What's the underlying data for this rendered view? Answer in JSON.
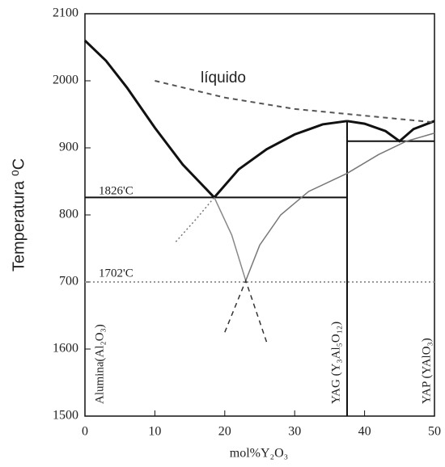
{
  "chart_data": {
    "type": "line",
    "x_label": "mol%Y₂O₃",
    "y_label": "Temperatura ⁰C",
    "annotations": [
      "líquido",
      "1826'C",
      "1702'C",
      "Alumina(Al₂O₃)",
      "YAG (Y₃Al₅O₁₂)",
      "YAP (YAlO₃)"
    ],
    "xlim": [
      0,
      50
    ],
    "xticks": [
      0,
      10,
      20,
      30,
      40,
      50
    ],
    "ylim": [
      1500,
      2100
    ],
    "yticks": [
      1500,
      1600,
      {
        "value": 1700,
        "label": "700"
      },
      {
        "value": 1800,
        "label": "800"
      },
      {
        "value": 1900,
        "label": "900"
      },
      2000,
      2100
    ],
    "series": [
      {
        "color": "#111111",
        "style": "solid",
        "width": 3,
        "x": [
          0,
          3,
          6,
          10,
          14,
          18.5
        ],
        "values": [
          2060,
          2030,
          1990,
          1930,
          1875,
          1826
        ]
      },
      {
        "color": "#111111",
        "style": "solid",
        "width": 3,
        "x": [
          18.5,
          22,
          26,
          30,
          34,
          37.5
        ],
        "values": [
          1826,
          1868,
          1898,
          1920,
          1935,
          1940
        ]
      },
      {
        "color": "#111111",
        "style": "solid",
        "width": 3,
        "x": [
          37.5,
          40,
          43,
          45,
          47,
          50
        ],
        "values": [
          1940,
          1936,
          1925,
          1910,
          1928,
          1940
        ]
      },
      {
        "color": "#555555",
        "style": "dashed",
        "width": 2,
        "x": [
          10,
          20,
          30,
          40,
          50
        ],
        "values": [
          2000,
          1975,
          1958,
          1948,
          1938
        ]
      },
      {
        "color": "#111111",
        "style": "solid",
        "width": 2,
        "x": [
          0,
          37.5
        ],
        "values": [
          1826,
          1826
        ]
      },
      {
        "color": "#999999",
        "style": "dotted",
        "width": 2,
        "x": [
          0,
          50
        ],
        "values": [
          1700,
          1700
        ]
      },
      {
        "color": "#111111",
        "style": "solid",
        "width": 2,
        "x": [
          37.5,
          37.5
        ],
        "values": [
          1500,
          1940
        ]
      },
      {
        "color": "#111111",
        "style": "solid",
        "width": 2,
        "x": [
          37.5,
          50
        ],
        "values": [
          1910,
          1910
        ]
      },
      {
        "color": "#777777",
        "style": "dotted",
        "width": 1.5,
        "x": [
          13,
          16,
          18.5
        ],
        "values": [
          1760,
          1795,
          1826
        ]
      },
      {
        "color": "#888888",
        "style": "solid",
        "width": 1.5,
        "x": [
          18.5,
          21,
          23
        ],
        "values": [
          1826,
          1770,
          1702
        ]
      },
      {
        "color": "#777777",
        "style": "solid",
        "width": 1.5,
        "x": [
          23,
          25,
          28,
          32,
          37.5,
          42,
          46,
          50
        ],
        "values": [
          1702,
          1755,
          1800,
          1835,
          1862,
          1890,
          1910,
          1922
        ]
      },
      {
        "color": "#333333",
        "style": "dashed",
        "width": 1.5,
        "x": [
          20,
          23,
          26
        ],
        "values": [
          1625,
          1702,
          1610
        ]
      }
    ]
  }
}
